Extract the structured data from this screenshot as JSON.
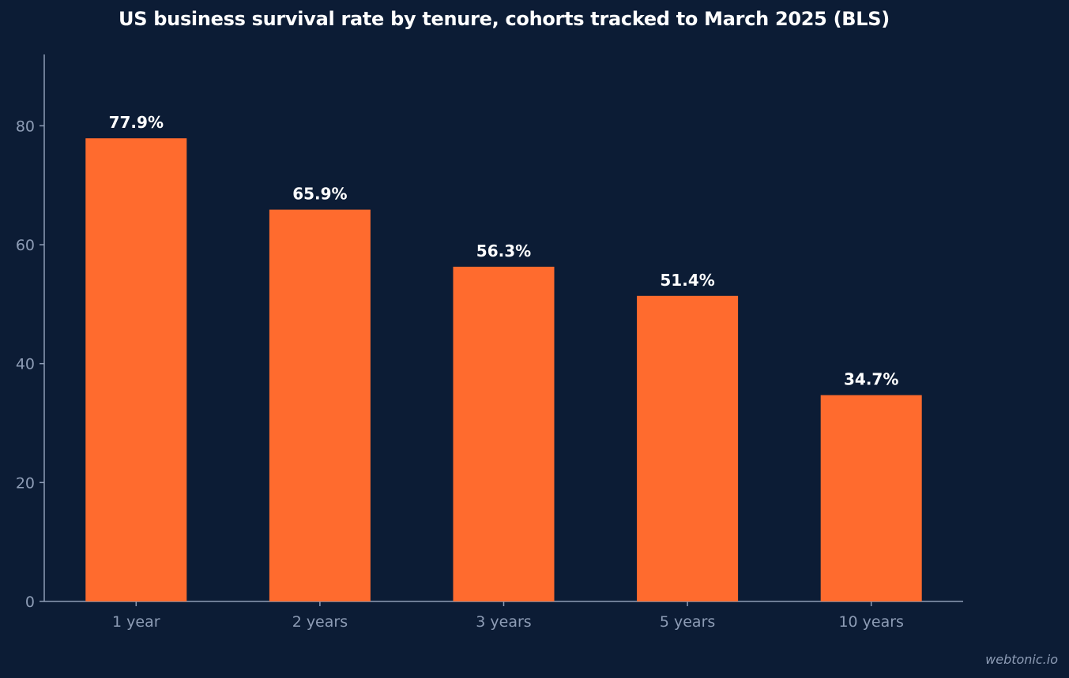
{
  "chart_data": {
    "type": "bar",
    "title": "US business survival rate by tenure, cohorts tracked to March 2025 (BLS)",
    "xlabel": "",
    "ylabel": "",
    "categories": [
      "1 year",
      "2 years",
      "3 years",
      "5 years",
      "10 years"
    ],
    "values": [
      77.9,
      65.9,
      56.3,
      51.4,
      34.7
    ],
    "data_labels": [
      "77.9%",
      "65.9%",
      "56.3%",
      "51.4%",
      "34.7%"
    ],
    "ylim": [
      0,
      92
    ],
    "yticks": [
      0,
      20,
      40,
      60,
      80
    ],
    "grid": false,
    "legend": "none"
  },
  "colors": {
    "background": "#0c1c35",
    "bar": "#ff6b2e",
    "axis": "#8d9cb5",
    "tick_text": "#8d9cb5",
    "label_text": "#ffffff"
  },
  "watermark": "webtonic.io"
}
